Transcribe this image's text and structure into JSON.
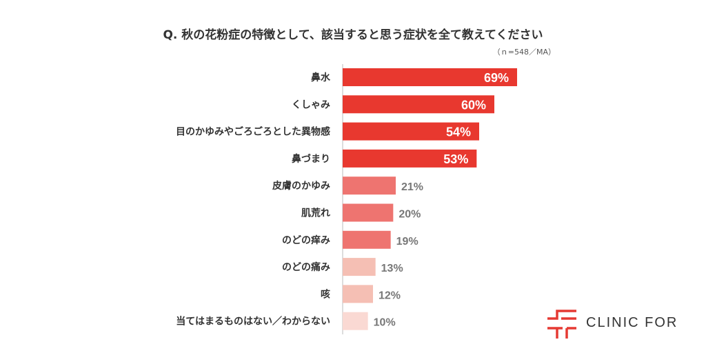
{
  "chart_data": {
    "type": "bar",
    "orientation": "horizontal",
    "title": "Q. 秋の花粉症の特徴として、該当すると思う症状を全て教えてください",
    "note": "（ｎ=548／MA）",
    "categories": [
      "鼻水",
      "くしゃみ",
      "目のかゆみやごろごろとした異物感",
      "鼻づまり",
      "皮膚のかゆみ",
      "肌荒れ",
      "のどの痒み",
      "のどの痛み",
      "咳",
      "当てはまるものはない／わからない"
    ],
    "values": [
      69,
      60,
      54,
      53,
      21,
      20,
      19,
      13,
      12,
      10
    ],
    "value_suffix": "%",
    "xlim": [
      0,
      100
    ],
    "grid": false,
    "colors": [
      "#e8382f",
      "#e8382f",
      "#e8382f",
      "#e8382f",
      "#ee7470",
      "#ee7470",
      "#ee7470",
      "#f5bfb4",
      "#f5bfb4",
      "#fad9d3"
    ],
    "label_inside_colors": "#ffffff",
    "label_outside_color": "#777777"
  },
  "logo": {
    "text": "CLINIC FOR",
    "color": "#e53a33"
  }
}
